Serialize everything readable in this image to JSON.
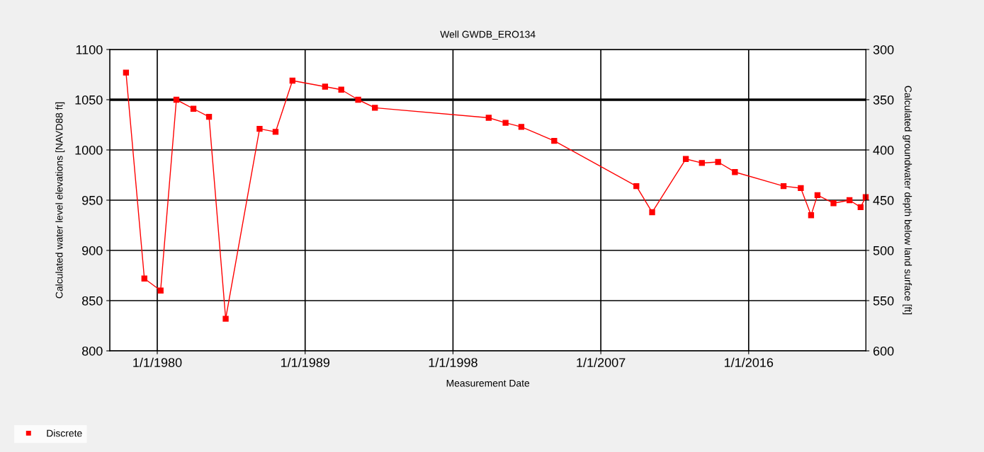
{
  "chart_data": {
    "type": "line",
    "title": "Well GWDB_ERO134",
    "xlabel": "Measurement Date",
    "ylabel": "Calculated water level elevations [NAVD88 ft]",
    "y2label": "Calculated groundwater depth below land surface [ft]",
    "x": [
      "1978-02-05",
      "1979-03-20",
      "1980-03-15",
      "1981-03-01",
      "1982-03-15",
      "1983-02-25",
      "1984-03-01",
      "1986-03-25",
      "1987-03-15",
      "1988-03-25",
      "1990-03-20",
      "1991-03-15",
      "1992-03-25",
      "1993-04-01",
      "2000-03-05",
      "2001-03-15",
      "2002-03-01",
      "2004-03-01",
      "2009-03-01",
      "2010-02-15",
      "2012-03-05",
      "2013-02-25",
      "2014-02-20",
      "2015-03-01",
      "2018-02-15",
      "2019-03-05",
      "2019-10-20",
      "2020-03-10",
      "2021-03-01",
      "2022-02-20",
      "2022-10-25",
      "2023-02-15"
    ],
    "series": [
      {
        "name": "Discrete",
        "color": "#ff0000",
        "values": [
          1077,
          872,
          860,
          1050,
          1041,
          1033,
          832,
          1021,
          1018,
          1069,
          1063,
          1060,
          1050,
          1042,
          1032,
          1027,
          1023,
          1009,
          964,
          938,
          991,
          987,
          988,
          978,
          964,
          962,
          935,
          955,
          947,
          950,
          943,
          953
        ]
      }
    ],
    "xlim": [
      "1977-02-10",
      "2023-02-20"
    ],
    "xticks": [
      {
        "value": "1980-01-01",
        "label": "1/1/1980"
      },
      {
        "value": "1989-01-01",
        "label": "1/1/1989"
      },
      {
        "value": "1998-01-01",
        "label": "1/1/1998"
      },
      {
        "value": "2007-01-01",
        "label": "1/1/2007"
      },
      {
        "value": "2016-01-01",
        "label": "1/1/2016"
      }
    ],
    "ylim": [
      800,
      1100
    ],
    "yticks": [
      800,
      850,
      900,
      950,
      1000,
      1050,
      1100
    ],
    "y2lim": [
      600,
      300
    ],
    "y2ticks": [
      300,
      350,
      400,
      450,
      500,
      550,
      600
    ],
    "ref_lines": [
      {
        "axis": "y",
        "value": 1050,
        "color": "#000000"
      }
    ],
    "grid": true,
    "legend": "bottom left",
    "marker": "square",
    "line_style": "solid"
  }
}
